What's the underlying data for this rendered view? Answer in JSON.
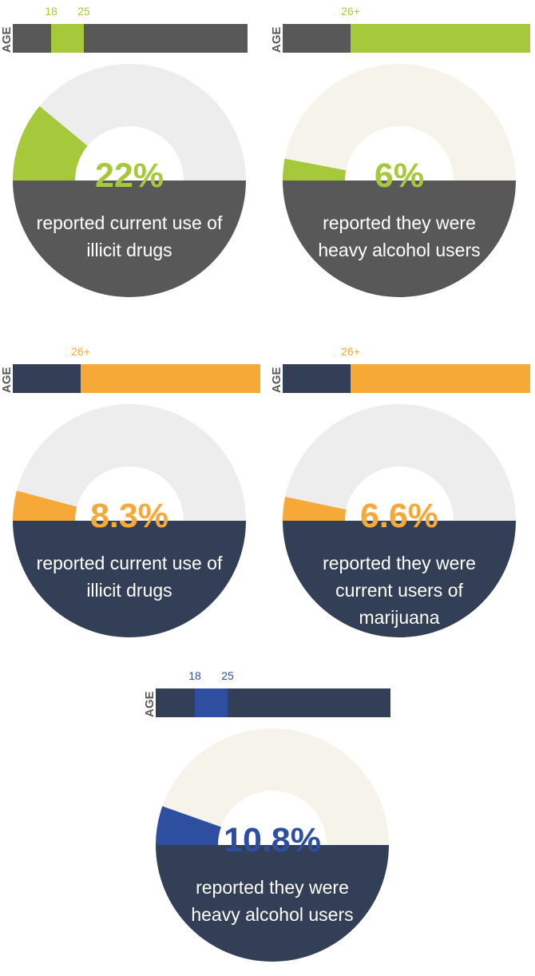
{
  "colors": {
    "green": "#a6c93b",
    "orange": "#f7a937",
    "blue": "#2e4fa0",
    "dark_gray": "#585858",
    "navy": "#323f56",
    "light_gray": "#ededed",
    "cream": "#f6f4ea"
  },
  "chart_data": [
    {
      "type": "gauge",
      "age_axis_label": "AGE",
      "age_ticks": [
        "18",
        "25"
      ],
      "value": 22,
      "value_label": "22%",
      "caption": "reported current use of illicit drugs",
      "accent": "#a6c93b",
      "band": "#585858",
      "track": "#ededed"
    },
    {
      "type": "gauge",
      "age_axis_label": "AGE",
      "age_ticks": [
        "26+"
      ],
      "value": 6,
      "value_label": "6%",
      "caption": "reported they were heavy alcohol users",
      "accent": "#a6c93b",
      "band": "#585858",
      "track": "#f6f4ea"
    },
    {
      "type": "gauge",
      "age_axis_label": "AGE",
      "age_ticks": [
        "26+"
      ],
      "value": 8.3,
      "value_label": "8.3%",
      "caption": "reported current use of illicit drugs",
      "accent": "#f7a937",
      "band": "#323f56",
      "track": "#ededed"
    },
    {
      "type": "gauge",
      "age_axis_label": "AGE",
      "age_ticks": [
        "26+"
      ],
      "value": 6.6,
      "value_label": "6.6%",
      "caption": "reported they were current users of marijuana",
      "accent": "#f7a937",
      "band": "#323f56",
      "track": "#ededed"
    },
    {
      "type": "gauge",
      "age_axis_label": "AGE",
      "age_ticks": [
        "18",
        "25"
      ],
      "value": 10.8,
      "value_label": "10.8%",
      "caption": "reported they were heavy alcohol users",
      "accent": "#2e4fa0",
      "band": "#323f56",
      "track": "#f6f4ea"
    }
  ]
}
